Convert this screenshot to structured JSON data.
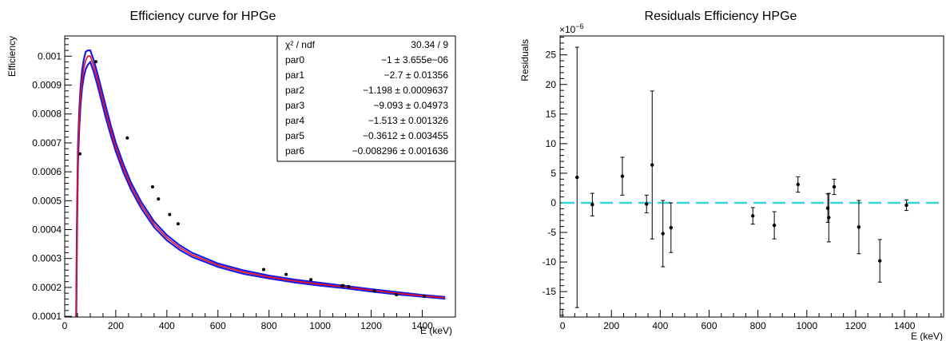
{
  "chart_data": [
    {
      "type": "line",
      "title": "Efficiency curve for HPGe",
      "xlabel": "E (keV)",
      "ylabel": "Efficiency",
      "xlim": [
        0,
        1530
      ],
      "ylim": [
        9.75e-05,
        0.00107
      ],
      "x_ticks": [
        0,
        200,
        400,
        600,
        800,
        1000,
        1200,
        1400
      ],
      "y_ticks": [
        0.0001,
        0.0002,
        0.0003,
        0.0004,
        0.0005,
        0.0006,
        0.0007,
        0.0008,
        0.0009,
        0.001
      ],
      "y_tick_labels": [
        "0.0001",
        "0.0002",
        "0.0003",
        "0.0004",
        "0.0005",
        "0.0006",
        "0.0007",
        "0.0008",
        "0.0009",
        "0.001"
      ],
      "series": [
        {
          "role": "data",
          "color": "#000000",
          "x": [
            59.5,
            122,
            245,
            344,
            367,
            411,
            444,
            779,
            867,
            964,
            1086,
            1090,
            1112,
            1213,
            1299,
            1408
          ],
          "y": [
            0.000662,
            0.000981,
            0.000717,
            0.000548,
            0.000506,
            0.000452,
            0.00042,
            0.000262,
            0.000245,
            0.000227,
            0.000206,
            0.000206,
            0.000203,
            0.000188,
            0.000175,
            0.000169
          ]
        },
        {
          "role": "fit",
          "color": "#ee1111",
          "x": [
            45,
            48,
            52,
            57,
            62,
            68,
            75,
            82,
            90,
            100,
            112,
            125,
            140,
            160,
            180,
            200,
            230,
            260,
            300,
            350,
            400,
            450,
            500,
            600,
            700,
            800,
            900,
            1000,
            1100,
            1200,
            1300,
            1400,
            1490
          ],
          "y": [
            9.75e-05,
            0.0004,
            0.00066,
            0.00078,
            0.00086,
            0.00092,
            0.00096,
            0.000985,
            0.001,
            0.001,
            0.00097,
            0.00093,
            0.00088,
            0.00081,
            0.000745,
            0.000686,
            0.000612,
            0.00055,
            0.000484,
            0.000418,
            0.000372,
            0.000338,
            0.000312,
            0.000277,
            0.000253,
            0.000236,
            0.000222,
            0.000211,
            0.000201,
            0.00019,
            0.00018,
            0.000171,
            0.000164
          ]
        },
        {
          "role": "band",
          "color": "#1a1ae6",
          "upper": [
            9.75e-05,
            0.00043,
            0.00069,
            0.00081,
            0.00089,
            0.00095,
            0.00099,
            0.001015,
            0.00102,
            0.00102,
            0.00099,
            0.00095,
            0.0009,
            0.00083,
            0.000762,
            0.000701,
            0.000626,
            0.000562,
            0.000495,
            0.000428,
            0.000381,
            0.000346,
            0.000319,
            0.000283,
            0.000259,
            0.000241,
            0.000227,
            0.000216,
            0.000205,
            0.000194,
            0.000184,
            0.000174,
            0.000167
          ],
          "lower": [
            9.75e-05,
            0.00037,
            0.00063,
            0.00075,
            0.00083,
            0.00089,
            0.00093,
            0.000955,
            0.00097,
            0.00098,
            0.00095,
            0.00091,
            0.00086,
            0.00079,
            0.000728,
            0.000671,
            0.000598,
            0.000538,
            0.000473,
            0.000408,
            0.000363,
            0.00033,
            0.000305,
            0.000271,
            0.000247,
            0.000231,
            0.000217,
            0.000206,
            0.000197,
            0.000186,
            0.000176,
            0.000168,
            0.000161
          ]
        }
      ],
      "stats_box": {
        "placement": "top-right",
        "rows": [
          [
            "χ² / ndf",
            "30.34 / 9"
          ],
          [
            "par0",
            "−1 ± 3.655e−06"
          ],
          [
            "par1",
            "−2.7 ± 0.01356"
          ],
          [
            "par2",
            "−1.198 ± 0.0009637"
          ],
          [
            "par3",
            "−9.093 ± 0.04973"
          ],
          [
            "par4",
            "−1.513 ± 0.001326"
          ],
          [
            "par5",
            "−0.3612 ± 0.003455"
          ],
          [
            "par6",
            "−0.008296 ± 0.001636"
          ]
        ]
      }
    },
    {
      "type": "scatter",
      "title": "Residuals Efficiency HPGe",
      "xlabel": "E (keV)",
      "ylabel": "Residuals",
      "exponent_label": "×10",
      "exponent_power": "−6",
      "xlim": [
        -10,
        1560
      ],
      "ylim": [
        -19.3,
        28.2
      ],
      "x_ticks": [
        0,
        200,
        400,
        600,
        800,
        1000,
        1200,
        1400
      ],
      "y_ticks": [
        -15,
        -10,
        -5,
        0,
        5,
        10,
        15,
        20,
        25
      ],
      "zero_line_color": "#33d6d6",
      "series": [
        {
          "role": "residuals",
          "color": "#000000",
          "points": [
            {
              "x": 59.5,
              "y": 4.3,
              "err": 22.0
            },
            {
              "x": 122,
              "y": -0.3,
              "err": 1.9
            },
            {
              "x": 245,
              "y": 4.5,
              "err": 3.2
            },
            {
              "x": 344,
              "y": -0.2,
              "err": 1.5
            },
            {
              "x": 367,
              "y": 6.4,
              "err": 12.5
            },
            {
              "x": 411,
              "y": -5.2,
              "err": 5.6
            },
            {
              "x": 444,
              "y": -4.2,
              "err": 4.2
            },
            {
              "x": 779,
              "y": -2.2,
              "err": 1.4
            },
            {
              "x": 867,
              "y": -3.8,
              "err": 2.3
            },
            {
              "x": 964,
              "y": 3.1,
              "err": 1.3
            },
            {
              "x": 1086,
              "y": -0.9,
              "err": 2.4
            },
            {
              "x": 1090,
              "y": -2.5,
              "err": 4.1
            },
            {
              "x": 1112,
              "y": 2.7,
              "err": 1.3
            },
            {
              "x": 1213,
              "y": -4.1,
              "err": 4.5
            },
            {
              "x": 1299,
              "y": -9.8,
              "err": 3.6
            },
            {
              "x": 1408,
              "y": -0.4,
              "err": 0.9
            }
          ]
        }
      ]
    }
  ]
}
